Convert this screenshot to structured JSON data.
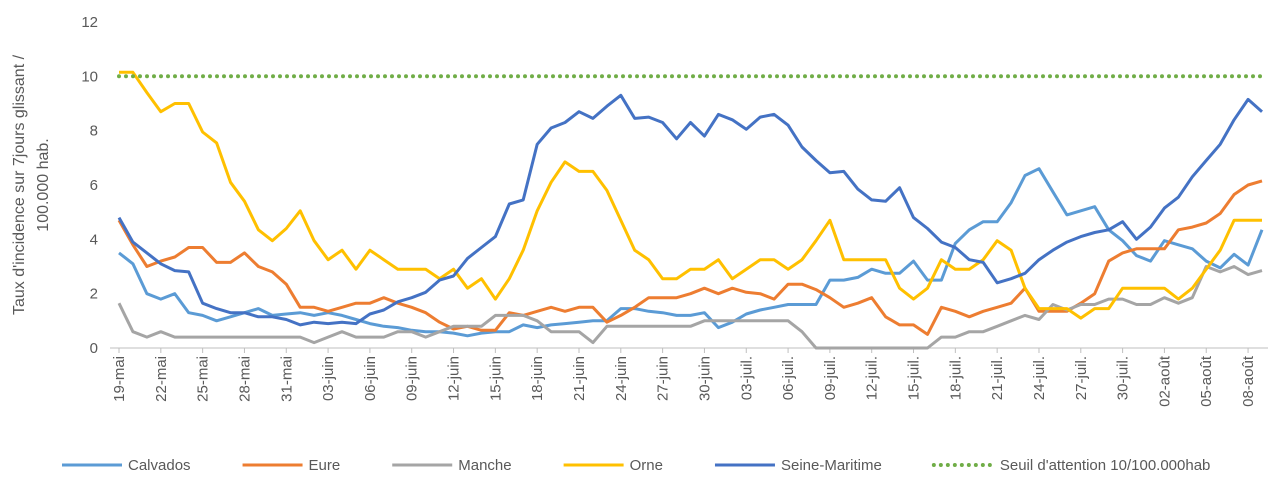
{
  "chart_data": {
    "type": "line",
    "ylabel": [
      "Taux d'incidence sur 7jours glissant /",
      "100.000 hab."
    ],
    "categories": [
      "19-mai",
      null,
      null,
      "22-mai",
      null,
      null,
      "25-mai",
      null,
      null,
      "28-mai",
      null,
      null,
      "31-mai",
      null,
      null,
      "03-juin",
      null,
      null,
      "06-juin",
      null,
      null,
      "09-juin",
      null,
      null,
      "12-juin",
      null,
      null,
      "15-juin",
      null,
      null,
      "18-juin",
      null,
      null,
      "21-juin",
      null,
      null,
      "24-juin",
      null,
      null,
      "27-juin",
      null,
      null,
      "30-juin",
      null,
      null,
      "03-juil.",
      null,
      null,
      "06-juil.",
      null,
      null,
      "09-juil.",
      null,
      null,
      "12-juil.",
      null,
      null,
      "15-juil.",
      null,
      null,
      "18-juil.",
      null,
      null,
      "21-juil.",
      null,
      null,
      "24-juil.",
      null,
      null,
      "27-juil.",
      null,
      null,
      "30-juil.",
      null,
      null,
      "02-août",
      null,
      null,
      "05-août",
      null,
      null,
      "08-août",
      null
    ],
    "ylim": [
      0,
      12
    ],
    "yticks": [
      0,
      2,
      4,
      6,
      8,
      10,
      12
    ],
    "grid": false,
    "series": [
      {
        "name": "Calvados",
        "color": "#5b9bd5",
        "values": [
          3.5,
          3.1,
          2.0,
          1.8,
          2.0,
          1.3,
          1.2,
          1.0,
          1.15,
          1.3,
          1.45,
          1.2,
          1.25,
          1.3,
          1.2,
          1.3,
          1.2,
          1.05,
          0.9,
          0.8,
          0.75,
          0.65,
          0.6,
          0.6,
          0.55,
          0.45,
          0.55,
          0.6,
          0.6,
          0.85,
          0.75,
          0.85,
          0.9,
          0.95,
          1.0,
          1.0,
          1.45,
          1.45,
          1.35,
          1.3,
          1.2,
          1.2,
          1.3,
          0.75,
          0.95,
          1.25,
          1.4,
          1.5,
          1.6,
          1.6,
          1.6,
          2.5,
          2.5,
          2.6,
          2.9,
          2.75,
          2.75,
          3.2,
          2.5,
          2.5,
          3.85,
          4.35,
          4.65,
          4.65,
          5.35,
          6.35,
          6.6,
          5.75,
          4.9,
          5.05,
          5.2,
          4.35,
          3.95,
          3.4,
          3.2,
          3.95,
          3.8,
          3.65,
          3.2,
          2.95,
          3.45,
          3.05,
          4.35
        ]
      },
      {
        "name": "Eure",
        "color": "#ed7d31",
        "values": [
          4.7,
          3.8,
          3.0,
          3.2,
          3.35,
          3.7,
          3.7,
          3.15,
          3.15,
          3.5,
          3.0,
          2.8,
          2.35,
          1.5,
          1.5,
          1.35,
          1.5,
          1.65,
          1.65,
          1.85,
          1.65,
          1.5,
          1.3,
          0.95,
          0.7,
          0.8,
          0.65,
          0.65,
          1.3,
          1.2,
          1.35,
          1.5,
          1.35,
          1.5,
          1.5,
          0.95,
          1.2,
          1.5,
          1.85,
          1.85,
          1.85,
          2.0,
          2.2,
          2.0,
          2.2,
          2.05,
          2.0,
          1.8,
          2.35,
          2.35,
          2.15,
          1.85,
          1.5,
          1.65,
          1.85,
          1.15,
          0.85,
          0.85,
          0.5,
          1.5,
          1.35,
          1.15,
          1.35,
          1.5,
          1.65,
          2.2,
          1.35,
          1.35,
          1.35,
          1.65,
          2.0,
          3.2,
          3.5,
          3.65,
          3.65,
          3.65,
          4.35,
          4.45,
          4.6,
          4.95,
          5.65,
          6.0,
          6.15
        ]
      },
      {
        "name": "Manche",
        "color": "#a5a5a5",
        "values": [
          1.65,
          0.6,
          0.4,
          0.6,
          0.4,
          0.4,
          0.4,
          0.4,
          0.4,
          0.4,
          0.4,
          0.4,
          0.4,
          0.4,
          0.2,
          0.4,
          0.6,
          0.4,
          0.4,
          0.4,
          0.6,
          0.6,
          0.4,
          0.6,
          0.8,
          0.8,
          0.8,
          1.2,
          1.2,
          1.2,
          1.0,
          0.6,
          0.6,
          0.6,
          0.2,
          0.8,
          0.8,
          0.8,
          0.8,
          0.8,
          0.8,
          0.8,
          1.0,
          1.0,
          1.0,
          1.0,
          1.0,
          1.0,
          1.0,
          0.6,
          0,
          0,
          0,
          0,
          0,
          0,
          0,
          0,
          0,
          0.4,
          0.4,
          0.6,
          0.6,
          0.8,
          1.0,
          1.2,
          1.05,
          1.6,
          1.4,
          1.6,
          1.6,
          1.8,
          1.8,
          1.6,
          1.6,
          1.85,
          1.65,
          1.85,
          3.0,
          2.8,
          3.0,
          2.7,
          2.85
        ]
      },
      {
        "name": "Orne",
        "color": "#ffc000",
        "values": [
          10.15,
          10.15,
          9.4,
          8.7,
          9.0,
          9.0,
          7.95,
          7.55,
          6.1,
          5.4,
          4.35,
          3.95,
          4.4,
          5.05,
          3.95,
          3.25,
          3.6,
          2.9,
          3.6,
          3.25,
          2.9,
          2.9,
          2.9,
          2.55,
          2.9,
          2.2,
          2.55,
          1.8,
          2.55,
          3.6,
          5.05,
          6.1,
          6.85,
          6.5,
          6.5,
          5.8,
          4.7,
          3.6,
          3.25,
          2.55,
          2.55,
          2.9,
          2.9,
          3.25,
          2.55,
          2.9,
          3.25,
          3.25,
          2.9,
          3.25,
          3.95,
          4.7,
          3.25,
          3.25,
          3.25,
          3.25,
          2.2,
          1.8,
          2.2,
          3.25,
          2.9,
          2.9,
          3.25,
          3.95,
          3.6,
          2.2,
          1.45,
          1.45,
          1.45,
          1.1,
          1.45,
          1.45,
          2.2,
          2.2,
          2.2,
          2.2,
          1.8,
          2.2,
          2.9,
          3.6,
          4.7,
          4.7,
          4.7
        ]
      },
      {
        "name": "Seine-Maritime",
        "color": "#4472c4",
        "values": [
          4.8,
          3.9,
          3.5,
          3.1,
          2.85,
          2.8,
          1.65,
          1.45,
          1.3,
          1.3,
          1.15,
          1.15,
          1.05,
          0.85,
          0.95,
          0.9,
          0.95,
          0.9,
          1.25,
          1.4,
          1.7,
          1.85,
          2.05,
          2.5,
          2.65,
          3.3,
          3.7,
          4.1,
          5.3,
          5.45,
          7.5,
          8.1,
          8.3,
          8.7,
          8.45,
          8.9,
          9.3,
          8.45,
          8.5,
          8.3,
          7.7,
          8.3,
          7.8,
          8.6,
          8.4,
          8.05,
          8.5,
          8.6,
          8.2,
          7.4,
          6.9,
          6.45,
          6.5,
          5.85,
          5.45,
          5.4,
          5.9,
          4.8,
          4.4,
          3.9,
          3.7,
          3.25,
          3.15,
          2.4,
          2.55,
          2.75,
          3.25,
          3.6,
          3.9,
          4.1,
          4.25,
          4.35,
          4.65,
          4.0,
          4.45,
          5.15,
          5.55,
          6.3,
          6.9,
          7.5,
          8.4,
          9.15,
          8.7
        ]
      },
      {
        "name": "Seuil d'attention 10/100.000hab",
        "color": "#70ad47",
        "dash": "dotted",
        "values": [
          10,
          10,
          10,
          10,
          10,
          10,
          10,
          10,
          10,
          10,
          10,
          10,
          10,
          10,
          10,
          10,
          10,
          10,
          10,
          10,
          10,
          10,
          10,
          10,
          10,
          10,
          10,
          10,
          10,
          10,
          10,
          10,
          10,
          10,
          10,
          10,
          10,
          10,
          10,
          10,
          10,
          10,
          10,
          10,
          10,
          10,
          10,
          10,
          10,
          10,
          10,
          10,
          10,
          10,
          10,
          10,
          10,
          10,
          10,
          10,
          10,
          10,
          10,
          10,
          10,
          10,
          10,
          10,
          10,
          10,
          10,
          10,
          10,
          10,
          10,
          10,
          10,
          10,
          10,
          10,
          10,
          10,
          10
        ]
      }
    ]
  }
}
